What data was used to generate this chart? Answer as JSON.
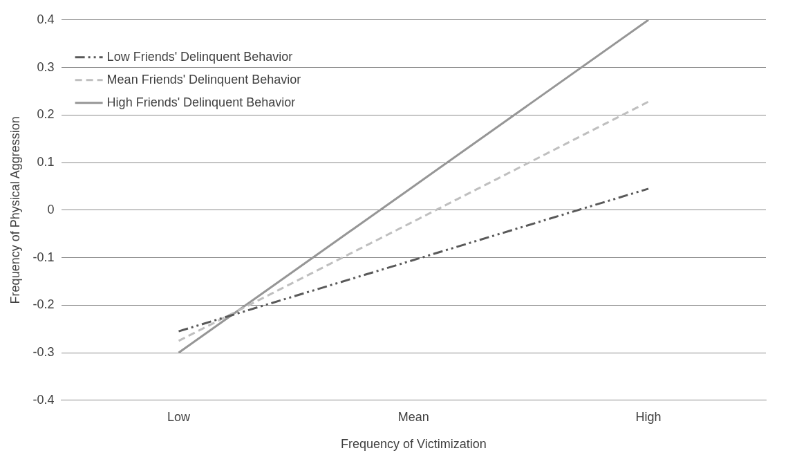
{
  "chart_data": {
    "type": "line",
    "xlabel": "Frequency of Victimization",
    "ylabel": "Frequency of Physical Aggression",
    "categories": [
      "Low",
      "Mean",
      "High"
    ],
    "series": [
      {
        "name": "Low Friends' Delinquent Behavior",
        "color": "#595959",
        "line_style": "dashdot",
        "values": [
          -0.255,
          -0.105,
          0.045
        ]
      },
      {
        "name": "Mean Friends' Delinquent Behavior",
        "color": "#bfbfbf",
        "line_style": "dashed",
        "values": [
          -0.275,
          -0.024,
          0.228
        ]
      },
      {
        "name": "High Friends' Delinquent Behavior",
        "color": "#969696",
        "line_style": "solid",
        "values": [
          -0.3,
          0.05,
          0.4
        ]
      }
    ],
    "ylim": [
      -0.4,
      0.4
    ],
    "yticks": [
      -0.4,
      -0.3,
      -0.2,
      -0.1,
      0,
      0.1,
      0.2,
      0.3,
      0.4
    ],
    "grid": "y",
    "legend": "top left",
    "marker": "none"
  }
}
